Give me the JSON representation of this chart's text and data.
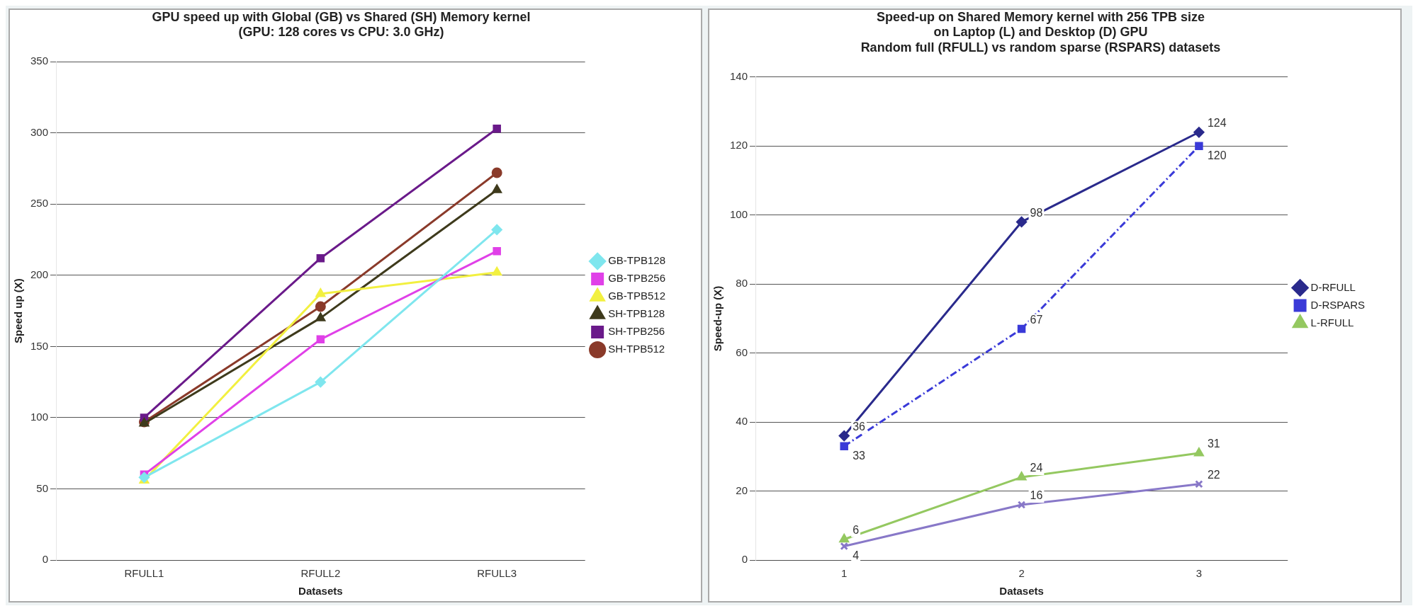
{
  "chart_data": [
    {
      "type": "line",
      "title": "GPU speed up with Global (GB) vs Shared (SH) Memory kernel\n(GPU: 128 cores vs CPU: 3.0 GHz)",
      "xlabel": "Datasets",
      "ylabel": "Speed up (X)",
      "categories": [
        "RFULL1",
        "RFULL2",
        "RFULL3"
      ],
      "ylim": [
        0,
        350
      ],
      "yticks": [
        0,
        50,
        100,
        150,
        200,
        250,
        300,
        350
      ],
      "grid": "y",
      "legend": "right",
      "series": [
        {
          "name": "GB-TPB128",
          "color": "#7fe6ee",
          "marker": "diamond",
          "values": [
            58,
            125,
            232
          ]
        },
        {
          "name": "GB-TPB256",
          "color": "#e040e8",
          "marker": "square",
          "values": [
            60,
            155,
            217
          ]
        },
        {
          "name": "GB-TPB512",
          "color": "#f2f040",
          "marker": "triangle",
          "values": [
            56,
            187,
            202
          ]
        },
        {
          "name": "SH-TPB128",
          "color": "#3e3a1c",
          "marker": "triangle",
          "values": [
            96,
            170,
            260
          ]
        },
        {
          "name": "SH-TPB256",
          "color": "#6a1a8a",
          "marker": "square",
          "values": [
            100,
            212,
            303
          ]
        },
        {
          "name": "SH-TPB512",
          "color": "#8a3a2a",
          "marker": "circle",
          "values": [
            97,
            178,
            272
          ]
        }
      ]
    },
    {
      "type": "line",
      "title": "Speed-up on Shared Memory kernel with 256 TPB size\non Laptop (L) and Desktop (D) GPU\nRandom full (RFULL) vs random sparse (RSPARS) datasets",
      "xlabel": "Datasets",
      "ylabel": "Speed-up (X)",
      "categories": [
        "1",
        "2",
        "3"
      ],
      "ylim": [
        0,
        140
      ],
      "yticks": [
        0,
        20,
        40,
        60,
        80,
        100,
        120,
        140
      ],
      "grid": "y",
      "legend": "right",
      "data_labels": true,
      "series": [
        {
          "name": "D-RFULL",
          "color": "#2a2a8c",
          "marker": "diamond",
          "values": [
            36,
            98,
            124
          ]
        },
        {
          "name": "D-RSPARS",
          "color": "#3a3ad8",
          "marker": "square",
          "line_style": "dashed",
          "values": [
            33,
            67,
            120
          ]
        },
        {
          "name": "L-RFULL",
          "color": "#94c860",
          "marker": "triangle",
          "values": [
            6,
            24,
            31
          ]
        },
        {
          "color": "#8878c8",
          "marker": "cross",
          "values": [
            4,
            16,
            22
          ]
        }
      ]
    }
  ]
}
